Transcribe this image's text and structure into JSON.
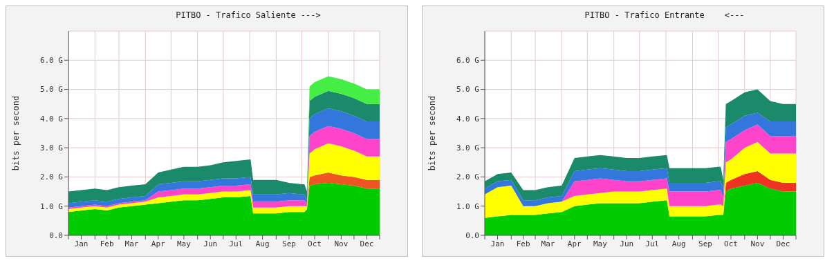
{
  "chart_data": [
    {
      "type": "area",
      "title": "PITBO - Trafico Saliente --->",
      "ylabel": "bits per second",
      "stacked": true,
      "grid": true,
      "x": [
        "--01-01",
        "--01-16",
        "--02-01",
        "--02-15",
        "--03-01",
        "--03-16",
        "--04-01",
        "--04-16",
        "--05-01",
        "--05-16",
        "--06-01",
        "--06-16",
        "--07-01",
        "--07-16",
        "--08-02",
        "--08-05",
        "--08-16",
        "--09-01",
        "--09-16",
        "--10-01",
        "--10-04",
        "--10-07",
        "--10-10",
        "--10-16",
        "--11-01",
        "--11-16",
        "--12-01",
        "--12-16",
        "--12-31"
      ],
      "xlim": [
        "--01-01",
        "--12-31"
      ],
      "xticks": [
        {
          "value": "--01-01",
          "label": null
        },
        {
          "value": "--01-16",
          "label": "Jan"
        },
        {
          "value": "--02-01",
          "label": null
        },
        {
          "value": "--02-15",
          "label": "Feb"
        },
        {
          "value": "--03-01",
          "label": null
        },
        {
          "value": "--03-16",
          "label": "Mar"
        },
        {
          "value": "--04-01",
          "label": null
        },
        {
          "value": "--04-16",
          "label": "Apr"
        },
        {
          "value": "--05-01",
          "label": null
        },
        {
          "value": "--05-16",
          "label": "May"
        },
        {
          "value": "--06-01",
          "label": null
        },
        {
          "value": "--06-16",
          "label": "Jun"
        },
        {
          "value": "--07-01",
          "label": null
        },
        {
          "value": "--07-16",
          "label": "Jul"
        },
        {
          "value": "--08-01",
          "label": null
        },
        {
          "value": "--08-16",
          "label": "Aug"
        },
        {
          "value": "--09-01",
          "label": null
        },
        {
          "value": "--09-16",
          "label": "Sep"
        },
        {
          "value": "--10-01",
          "label": null
        },
        {
          "value": "--10-16",
          "label": "Oct"
        },
        {
          "value": "--11-01",
          "label": null
        },
        {
          "value": "--11-16",
          "label": "Nov"
        },
        {
          "value": "--12-01",
          "label": null
        },
        {
          "value": "--12-16",
          "label": "Dec"
        },
        {
          "value": "--12-31",
          "label": null
        }
      ],
      "ylim": [
        0,
        7
      ],
      "yticks": [
        {
          "value": 0,
          "label": "0.0"
        },
        {
          "value": 1,
          "label": "1.0 G"
        },
        {
          "value": 2,
          "label": "2.0 G"
        },
        {
          "value": 3,
          "label": "3.0 G"
        },
        {
          "value": 4,
          "label": "4.0 G"
        },
        {
          "value": 5,
          "label": "5.0 G"
        },
        {
          "value": 6,
          "label": "6.0 G"
        }
      ],
      "series": [
        {
          "color": "#00cc00",
          "values": [
            0.8,
            0.85,
            0.9,
            0.85,
            0.95,
            1.0,
            1.05,
            1.1,
            1.15,
            1.2,
            1.2,
            1.25,
            1.3,
            1.3,
            1.35,
            0.75,
            0.75,
            0.75,
            0.8,
            0.8,
            0.8,
            0.9,
            1.7,
            1.75,
            1.8,
            1.75,
            1.7,
            1.6,
            1.6
          ]
        },
        {
          "color": "#ee5522",
          "values": [
            0,
            0,
            0,
            0,
            0,
            0,
            0,
            0,
            0,
            0,
            0,
            0,
            0,
            0,
            0,
            0,
            0,
            0,
            0,
            0,
            0,
            0,
            0.3,
            0.3,
            0.35,
            0.3,
            0.3,
            0.3,
            0.3
          ]
        },
        {
          "color": "#ffff00",
          "values": [
            0.1,
            0.1,
            0.1,
            0.1,
            0.1,
            0.1,
            0.1,
            0.2,
            0.2,
            0.2,
            0.2,
            0.2,
            0.2,
            0.2,
            0.2,
            0.2,
            0.2,
            0.2,
            0.2,
            0.2,
            0.2,
            0.1,
            0.8,
            0.9,
            1.0,
            1.0,
            0.9,
            0.8,
            0.8
          ]
        },
        {
          "color": "#ff44cc",
          "values": [
            0.05,
            0.05,
            0.05,
            0.05,
            0.05,
            0.05,
            0.05,
            0.2,
            0.2,
            0.2,
            0.2,
            0.2,
            0.2,
            0.2,
            0.2,
            0.2,
            0.2,
            0.2,
            0.2,
            0.2,
            0.2,
            0.1,
            0.6,
            0.6,
            0.6,
            0.6,
            0.6,
            0.6,
            0.6
          ]
        },
        {
          "color": "#3377dd",
          "values": [
            0.15,
            0.15,
            0.15,
            0.15,
            0.15,
            0.15,
            0.15,
            0.25,
            0.25,
            0.25,
            0.25,
            0.25,
            0.25,
            0.25,
            0.25,
            0.25,
            0.25,
            0.25,
            0.25,
            0.2,
            0.2,
            0.1,
            0.6,
            0.6,
            0.6,
            0.6,
            0.6,
            0.6,
            0.6
          ]
        },
        {
          "color": "#1a8a6a",
          "values": [
            0.4,
            0.4,
            0.4,
            0.4,
            0.4,
            0.4,
            0.4,
            0.4,
            0.45,
            0.5,
            0.5,
            0.5,
            0.55,
            0.6,
            0.6,
            0.5,
            0.5,
            0.5,
            0.35,
            0.35,
            0.35,
            0.3,
            0.6,
            0.6,
            0.6,
            0.6,
            0.6,
            0.6,
            0.6
          ]
        },
        {
          "color": "#44ee44",
          "values": [
            0,
            0,
            0,
            0,
            0,
            0,
            0,
            0,
            0,
            0,
            0,
            0,
            0,
            0,
            0,
            0,
            0,
            0,
            0,
            0,
            0,
            0,
            0.5,
            0.5,
            0.5,
            0.5,
            0.5,
            0.5,
            0.5
          ]
        }
      ]
    },
    {
      "type": "area",
      "title": "PITBO - Trafico Entrante    <---",
      "ylabel": "bits per second",
      "stacked": true,
      "grid": true,
      "x": [
        "--01-01",
        "--01-16",
        "--02-01",
        "--02-15",
        "--03-01",
        "--03-16",
        "--04-01",
        "--04-16",
        "--05-01",
        "--05-16",
        "--06-01",
        "--06-16",
        "--07-01",
        "--07-16",
        "--08-02",
        "--08-05",
        "--08-16",
        "--09-01",
        "--09-16",
        "--10-01",
        "--10-04",
        "--10-07",
        "--10-10",
        "--10-16",
        "--11-01",
        "--11-16",
        "--12-01",
        "--12-16",
        "--12-31"
      ],
      "xlim": [
        "--01-01",
        "--12-31"
      ],
      "xticks": [
        {
          "value": "--01-01",
          "label": null
        },
        {
          "value": "--01-16",
          "label": "Jan"
        },
        {
          "value": "--02-01",
          "label": null
        },
        {
          "value": "--02-15",
          "label": "Feb"
        },
        {
          "value": "--03-01",
          "label": null
        },
        {
          "value": "--03-16",
          "label": "Mar"
        },
        {
          "value": "--04-01",
          "label": null
        },
        {
          "value": "--04-16",
          "label": "Apr"
        },
        {
          "value": "--05-01",
          "label": null
        },
        {
          "value": "--05-16",
          "label": "May"
        },
        {
          "value": "--06-01",
          "label": null
        },
        {
          "value": "--06-16",
          "label": "Jun"
        },
        {
          "value": "--07-01",
          "label": null
        },
        {
          "value": "--07-16",
          "label": "Jul"
        },
        {
          "value": "--08-01",
          "label": null
        },
        {
          "value": "--08-16",
          "label": "Aug"
        },
        {
          "value": "--09-01",
          "label": null
        },
        {
          "value": "--09-16",
          "label": "Sep"
        },
        {
          "value": "--10-01",
          "label": null
        },
        {
          "value": "--10-16",
          "label": "Oct"
        },
        {
          "value": "--11-01",
          "label": null
        },
        {
          "value": "--11-16",
          "label": "Nov"
        },
        {
          "value": "--12-01",
          "label": null
        },
        {
          "value": "--12-16",
          "label": "Dec"
        },
        {
          "value": "--12-31",
          "label": null
        }
      ],
      "ylim": [
        0,
        7
      ],
      "yticks": [
        {
          "value": 0,
          "label": "0.0"
        },
        {
          "value": 1,
          "label": "1.0 G"
        },
        {
          "value": 2,
          "label": "2.0 G"
        },
        {
          "value": 3,
          "label": "3.0 G"
        },
        {
          "value": 4,
          "label": "4.0 G"
        },
        {
          "value": 5,
          "label": "5.0 G"
        },
        {
          "value": 6,
          "label": "6.0 G"
        }
      ],
      "series": [
        {
          "color": "#00cc00",
          "values": [
            0.6,
            0.65,
            0.7,
            0.7,
            0.7,
            0.75,
            0.8,
            1.0,
            1.05,
            1.1,
            1.1,
            1.1,
            1.1,
            1.15,
            1.2,
            0.65,
            0.65,
            0.65,
            0.65,
            0.7,
            0.7,
            0.7,
            1.5,
            1.6,
            1.7,
            1.8,
            1.6,
            1.5,
            1.5
          ]
        },
        {
          "color": "#ee3322",
          "values": [
            0,
            0,
            0,
            0,
            0,
            0,
            0,
            0,
            0,
            0,
            0,
            0,
            0,
            0,
            0,
            0,
            0,
            0,
            0,
            0,
            0,
            0,
            0.3,
            0.3,
            0.4,
            0.4,
            0.3,
            0.3,
            0.3
          ]
        },
        {
          "color": "#ffff00",
          "values": [
            0.8,
            1.0,
            1.0,
            0.3,
            0.3,
            0.35,
            0.35,
            0.35,
            0.35,
            0.35,
            0.4,
            0.4,
            0.4,
            0.4,
            0.4,
            0.35,
            0.35,
            0.35,
            0.35,
            0.35,
            0.35,
            0.3,
            0.7,
            0.7,
            0.9,
            1.0,
            0.9,
            1.0,
            1.0
          ]
        },
        {
          "color": "#ff44cc",
          "values": [
            0,
            0,
            0,
            0,
            0,
            0,
            0,
            0.5,
            0.5,
            0.5,
            0.4,
            0.35,
            0.35,
            0.35,
            0.35,
            0.5,
            0.5,
            0.5,
            0.5,
            0.5,
            0.5,
            0.3,
            0.7,
            0.7,
            0.6,
            0.6,
            0.6,
            0.6,
            0.6
          ]
        },
        {
          "color": "#3377dd",
          "values": [
            0.2,
            0.2,
            0.2,
            0.2,
            0.2,
            0.2,
            0.2,
            0.35,
            0.35,
            0.35,
            0.35,
            0.35,
            0.35,
            0.35,
            0.35,
            0.3,
            0.3,
            0.3,
            0.3,
            0.3,
            0.3,
            0.3,
            0.5,
            0.5,
            0.5,
            0.4,
            0.5,
            0.5,
            0.5
          ]
        },
        {
          "color": "#1a8a6a",
          "values": [
            0.25,
            0.25,
            0.25,
            0.35,
            0.35,
            0.35,
            0.35,
            0.45,
            0.45,
            0.45,
            0.45,
            0.45,
            0.45,
            0.45,
            0.45,
            0.5,
            0.5,
            0.5,
            0.5,
            0.5,
            0.5,
            0.3,
            0.8,
            0.8,
            0.8,
            0.8,
            0.7,
            0.6,
            0.6
          ]
        }
      ]
    }
  ]
}
